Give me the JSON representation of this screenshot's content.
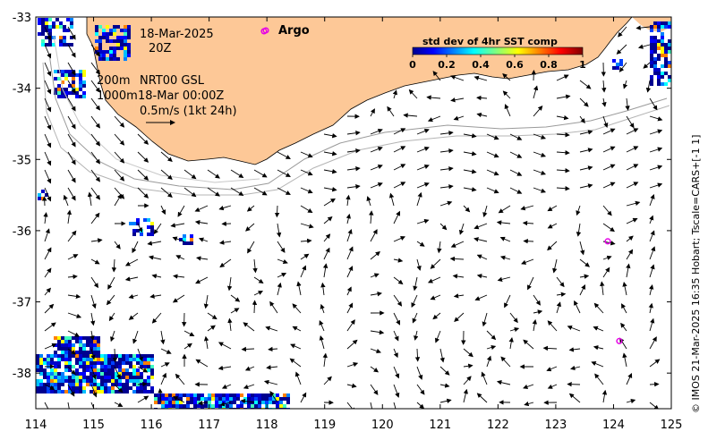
{
  "map": {
    "lon_range": [
      114,
      125
    ],
    "lat_range": [
      -38.5,
      -33
    ],
    "x_ticks": [
      "114",
      "115",
      "116",
      "117",
      "118",
      "119",
      "120",
      "121",
      "122",
      "123",
      "124",
      "125"
    ],
    "y_ticks": [
      "-33",
      "-34",
      "-35",
      "-36",
      "-37",
      "-38"
    ],
    "land_color": "#fdc897",
    "argo_color": "#e600e6"
  },
  "annotations": {
    "date": "18-Mar-2025",
    "hour": "20Z",
    "isobath_200": "200m",
    "isobath_1000": "1000m",
    "product": "NRT00 GSL",
    "product_time": "18-Mar 00:00Z",
    "scale_label": "0.5m/s (1kt 24h)",
    "argo_label": "Argo"
  },
  "colorbar": {
    "title": "std dev of 4hr SST comp",
    "ticks": [
      "0",
      "0.2",
      "0.4",
      "0.6",
      "0.8",
      "1"
    ]
  },
  "argo_floats": [
    {
      "lon": 117.95,
      "lat": -33.2
    },
    {
      "lon": 123.9,
      "lat": -36.15
    },
    {
      "lon": 124.1,
      "lat": -37.55
    }
  ],
  "credit": "© IMOS 21-Mar-2025 16:35 Hobart; Tscale=CARS+[-1 1]"
}
